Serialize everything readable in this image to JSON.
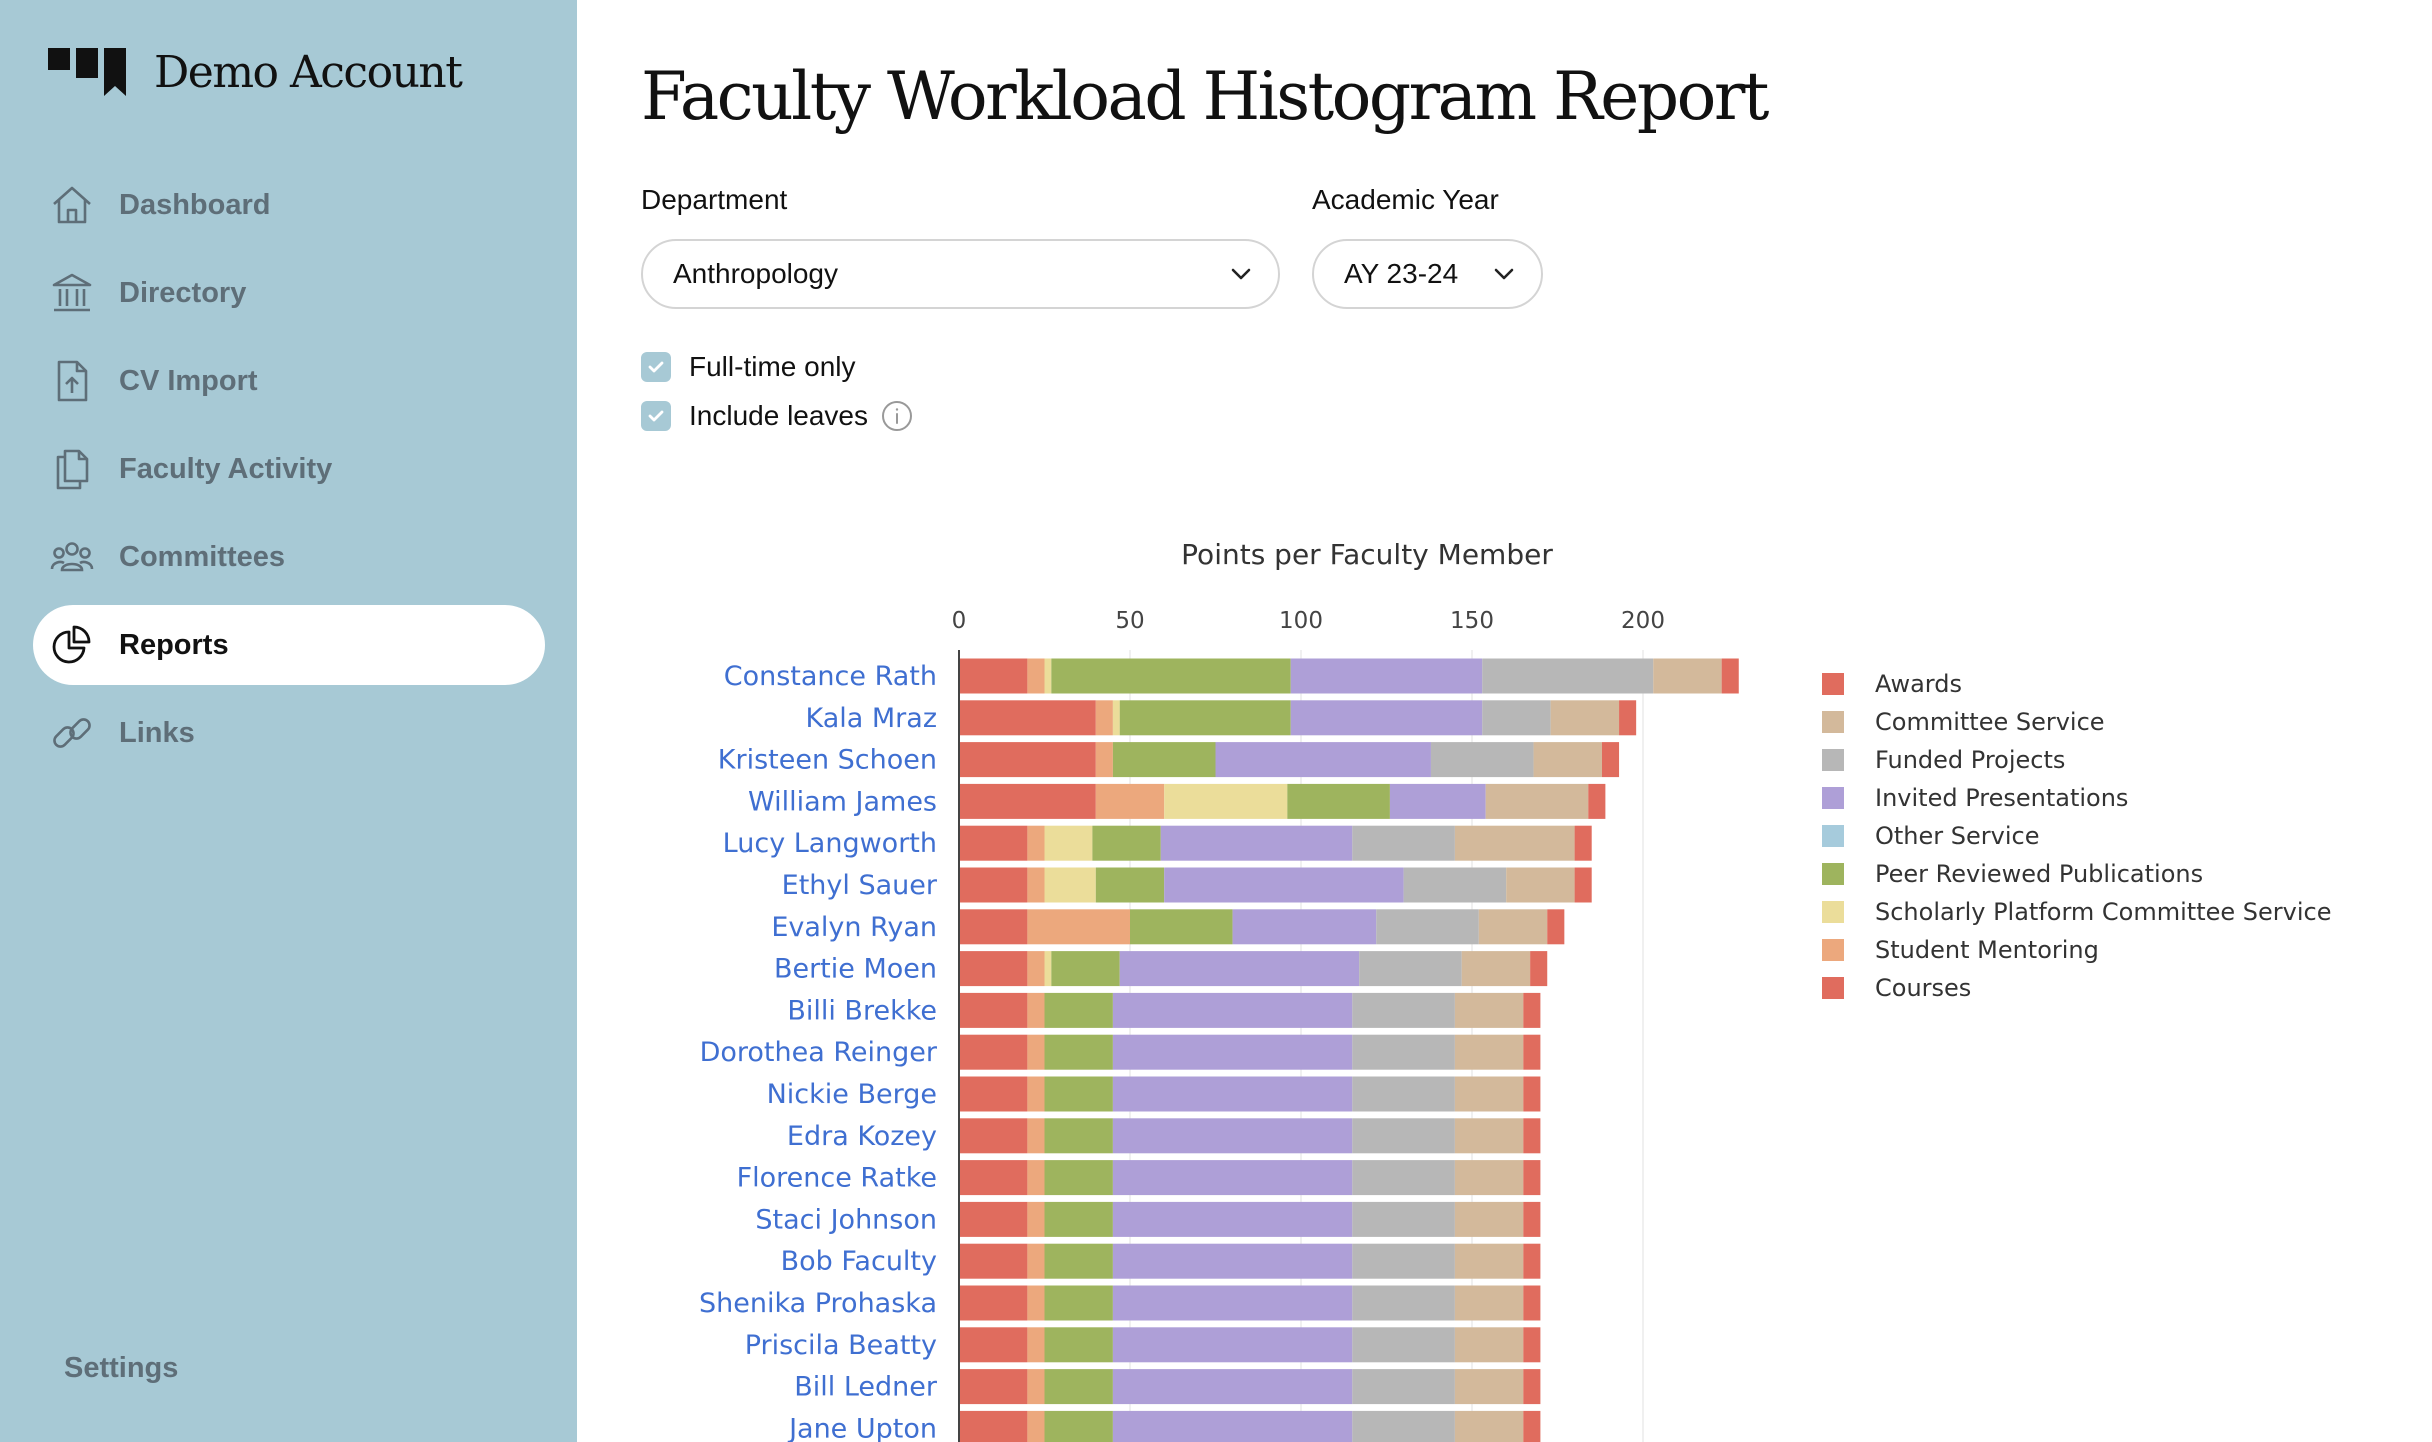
{
  "app": {
    "account_name": "Demo Account"
  },
  "sidebar": {
    "items": [
      {
        "id": "dashboard",
        "label": "Dashboard",
        "icon": "home-icon",
        "active": false
      },
      {
        "id": "directory",
        "label": "Directory",
        "icon": "building-icon",
        "active": false
      },
      {
        "id": "cv-import",
        "label": "CV Import",
        "icon": "file-upload-icon",
        "active": false
      },
      {
        "id": "faculty-activity",
        "label": "Faculty Activity",
        "icon": "documents-icon",
        "active": false
      },
      {
        "id": "committees",
        "label": "Committees",
        "icon": "people-icon",
        "active": false
      },
      {
        "id": "reports",
        "label": "Reports",
        "icon": "pie-chart-icon",
        "active": true
      },
      {
        "id": "links",
        "label": "Links",
        "icon": "link-icon",
        "active": false
      }
    ],
    "settings_label": "Settings"
  },
  "page": {
    "title": "Faculty Workload Histogram Report",
    "filters": {
      "department_label": "Department",
      "department_value": "Anthropology",
      "year_label": "Academic Year",
      "year_value": "AY 23-24",
      "fulltime_label": "Full-time only",
      "fulltime_checked": true,
      "leaves_label": "Include leaves",
      "leaves_checked": true
    }
  },
  "chart_data": {
    "type": "bar",
    "orientation": "horizontal",
    "stacked": true,
    "title": "Points per Faculty Member",
    "x_axis_position": "top",
    "xlim": [
      0,
      228
    ],
    "xticks": [
      0,
      50,
      100,
      150,
      200
    ],
    "grid": true,
    "legend_position": "right",
    "categories": [
      "Constance Rath",
      "Kala Mraz",
      "Kristeen Schoen",
      "William James",
      "Lucy Langworth",
      "Ethyl Sauer",
      "Evalyn Ryan",
      "Bertie Moen",
      "Billi Brekke",
      "Dorothea Reinger",
      "Nickie Berge",
      "Edra Kozey",
      "Florence Ratke",
      "Staci Johnson",
      "Bob Faculty",
      "Shenika Prohaska",
      "Priscila Beatty",
      "Bill Ledner",
      "Jane Upton"
    ],
    "stack_order": [
      "Courses",
      "Student Mentoring",
      "Scholarly Platform Committee Service",
      "Peer Reviewed Publications",
      "Other Service",
      "Invited Presentations",
      "Funded Projects",
      "Committee Service",
      "Awards"
    ],
    "series": [
      {
        "name": "Awards",
        "color": "#e06c5e",
        "values": [
          5,
          5,
          5,
          5,
          5,
          5,
          5,
          5,
          5,
          5,
          5,
          5,
          5,
          5,
          5,
          5,
          5,
          5,
          5
        ]
      },
      {
        "name": "Committee Service",
        "color": "#d3b99b",
        "values": [
          20,
          20,
          20,
          30,
          35,
          20,
          20,
          20,
          20,
          20,
          20,
          20,
          20,
          20,
          20,
          20,
          20,
          20,
          20
        ]
      },
      {
        "name": "Funded Projects",
        "color": "#b7b7b7",
        "values": [
          50,
          20,
          30,
          0,
          30,
          30,
          30,
          30,
          30,
          30,
          30,
          30,
          30,
          30,
          30,
          30,
          30,
          30,
          30
        ]
      },
      {
        "name": "Invited Presentations",
        "color": "#ae9fd7",
        "values": [
          56,
          56,
          63,
          28,
          56,
          70,
          42,
          70,
          70,
          70,
          70,
          70,
          70,
          70,
          70,
          70,
          70,
          70,
          70
        ]
      },
      {
        "name": "Other Service",
        "color": "#a6cbdc",
        "values": [
          0,
          0,
          0,
          0,
          0,
          0,
          0,
          0,
          0,
          0,
          0,
          0,
          0,
          0,
          0,
          0,
          0,
          0,
          0
        ]
      },
      {
        "name": "Peer Reviewed Publications",
        "color": "#9eb45e",
        "values": [
          70,
          50,
          30,
          30,
          20,
          20,
          30,
          20,
          20,
          20,
          20,
          20,
          20,
          20,
          20,
          20,
          20,
          20,
          20
        ]
      },
      {
        "name": "Scholarly Platform Committee Service",
        "color": "#ebdd9a",
        "values": [
          2,
          2,
          0,
          36,
          14,
          15,
          0,
          2,
          0,
          0,
          0,
          0,
          0,
          0,
          0,
          0,
          0,
          0,
          0
        ]
      },
      {
        "name": "Student Mentoring",
        "color": "#eca87d",
        "values": [
          5,
          5,
          5,
          20,
          5,
          5,
          30,
          5,
          5,
          5,
          5,
          5,
          5,
          5,
          5,
          5,
          5,
          5,
          5
        ]
      },
      {
        "name": "Courses",
        "color": "#e06c5e",
        "values": [
          20,
          40,
          40,
          40,
          20,
          20,
          20,
          20,
          20,
          20,
          20,
          20,
          20,
          20,
          20,
          20,
          20,
          20,
          20
        ]
      }
    ]
  }
}
